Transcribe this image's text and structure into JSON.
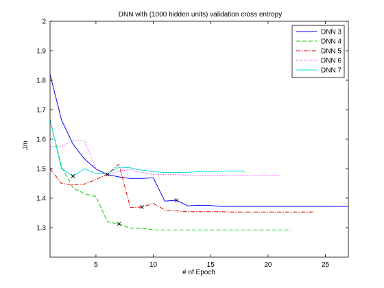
{
  "chart_data": {
    "type": "line",
    "title": "DNN with (1000 hidden units) validation cross entropy",
    "xlabel": "# of Epoch",
    "ylabel": "J/n",
    "xlim": [
      1,
      27
    ],
    "ylim": [
      1.2,
      2.0
    ],
    "xticks": [
      5,
      10,
      15,
      20,
      25
    ],
    "yticks": [
      1.3,
      1.4,
      1.5,
      1.6,
      1.7,
      1.8,
      1.9,
      2.0
    ],
    "ytick_labels": [
      "1.3",
      "1.4",
      "1.5",
      "1.6",
      "1.7",
      "1.8",
      "1.9",
      "2"
    ],
    "grid": false,
    "legend_position": "top-right",
    "series": [
      {
        "name": "DNN 3",
        "color": "#0000ff",
        "dash": "solid",
        "x": [
          1,
          2,
          3,
          4,
          5,
          6,
          7,
          8,
          9,
          10,
          11,
          12,
          13,
          14,
          15,
          16,
          17,
          18,
          19,
          20,
          21,
          22,
          23,
          24,
          25,
          26,
          27
        ],
        "y": [
          1.82,
          1.665,
          1.583,
          1.533,
          1.499,
          1.48,
          1.472,
          1.467,
          1.467,
          1.469,
          1.39,
          1.393,
          1.374,
          1.376,
          1.375,
          1.372,
          1.372,
          1.372,
          1.372,
          1.372,
          1.372,
          1.372,
          1.372,
          1.372,
          1.372,
          1.372,
          1.372
        ],
        "marker": {
          "x": 12,
          "y": 1.393
        }
      },
      {
        "name": "DNN 4",
        "color": "#00cc00",
        "dash": "dashed",
        "x": [
          1,
          2,
          3,
          4,
          5,
          6,
          7,
          8,
          9,
          10,
          11,
          12,
          13,
          14,
          15,
          16,
          17,
          18,
          19,
          20,
          21,
          22
        ],
        "y": [
          1.665,
          1.508,
          1.435,
          1.415,
          1.405,
          1.32,
          1.313,
          1.298,
          1.298,
          1.292,
          1.292,
          1.292,
          1.292,
          1.292,
          1.292,
          1.292,
          1.292,
          1.292,
          1.292,
          1.292,
          1.292,
          1.292
        ],
        "marker": {
          "x": 7,
          "y": 1.313
        }
      },
      {
        "name": "DNN 5",
        "color": "#dd0000",
        "dash": "dashdot",
        "x": [
          1,
          2,
          3,
          4,
          5,
          6,
          7,
          8,
          9,
          10,
          11,
          12,
          13,
          14,
          15,
          16,
          17,
          18,
          19,
          20,
          21,
          22,
          23,
          24
        ],
        "y": [
          1.5,
          1.45,
          1.445,
          1.448,
          1.463,
          1.482,
          1.515,
          1.368,
          1.37,
          1.382,
          1.36,
          1.357,
          1.354,
          1.354,
          1.354,
          1.354,
          1.353,
          1.353,
          1.353,
          1.353,
          1.353,
          1.353,
          1.353,
          1.353
        ],
        "marker": {
          "x": 9,
          "y": 1.37
        }
      },
      {
        "name": "DNN 6",
        "color": "#ee00ee",
        "dash": "dotted",
        "x": [
          1,
          2,
          3,
          4,
          5,
          6,
          7,
          8,
          9,
          10,
          11,
          12,
          13,
          14,
          15,
          16,
          17,
          18,
          19,
          20,
          21
        ],
        "y": [
          1.575,
          1.575,
          1.595,
          1.595,
          1.5,
          1.48,
          1.492,
          1.497,
          1.488,
          1.48,
          1.48,
          1.48,
          1.478,
          1.477,
          1.477,
          1.477,
          1.477,
          1.477,
          1.477,
          1.477,
          1.477
        ],
        "marker": {
          "x": 6,
          "y": 1.48
        }
      },
      {
        "name": "DNN 7",
        "color": "#00dddd",
        "dash": "solid",
        "x": [
          1,
          2,
          3,
          4,
          5,
          6,
          7,
          8,
          9,
          10,
          11,
          12,
          13,
          14,
          15,
          16,
          17,
          18
        ],
        "y": [
          1.665,
          1.5,
          1.475,
          1.5,
          1.483,
          1.483,
          1.505,
          1.503,
          1.495,
          1.49,
          1.487,
          1.487,
          1.488,
          1.49,
          1.49,
          1.492,
          1.492,
          1.492
        ],
        "marker": {
          "x": 3,
          "y": 1.475
        }
      }
    ]
  }
}
